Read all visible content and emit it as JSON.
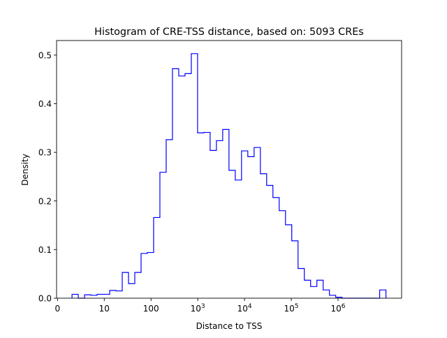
{
  "chart_data": {
    "type": "histogram",
    "title": "Histogram of CRE-TSS distance, based on: 5093 CREs",
    "xlabel": "Distance to TSS",
    "ylabel": "Density",
    "x_scale": "log10",
    "xlim": [
      -0.02,
      7.36
    ],
    "ylim": [
      0,
      0.53
    ],
    "grid": false,
    "bin_start": 0.31,
    "bin_width": 0.1343,
    "values": [
      0.008,
      0,
      0.007,
      0.006,
      0.008,
      0.008,
      0.016,
      0.015,
      0.053,
      0.03,
      0.053,
      0.092,
      0.094,
      0.166,
      0.259,
      0.326,
      0.472,
      0.457,
      0.462,
      0.503,
      0.34,
      0.341,
      0.304,
      0.324,
      0.347,
      0.263,
      0.243,
      0.303,
      0.291,
      0.31,
      0.256,
      0.232,
      0.207,
      0.18,
      0.151,
      0.118,
      0.061,
      0.037,
      0.024,
      0.037,
      0.017,
      0.006,
      0.002,
      0,
      0,
      0,
      0,
      0,
      0,
      0.017
    ],
    "line_color": "#0000ff",
    "x_ticks": [
      {
        "value": 0,
        "label": "0",
        "sup": ""
      },
      {
        "value": 1,
        "label": "10",
        "sup": ""
      },
      {
        "value": 2,
        "label": "100",
        "sup": ""
      },
      {
        "value": 3,
        "label": "10",
        "sup": "3"
      },
      {
        "value": 4,
        "label": "10",
        "sup": "4"
      },
      {
        "value": 5,
        "label": "10",
        "sup": "5"
      },
      {
        "value": 6,
        "label": "10",
        "sup": "6"
      }
    ],
    "y_ticks": [
      {
        "value": 0,
        "label": "0.0"
      },
      {
        "value": 0.1,
        "label": "0.1"
      },
      {
        "value": 0.2,
        "label": "0.2"
      },
      {
        "value": 0.3,
        "label": "0.3"
      },
      {
        "value": 0.4,
        "label": "0.4"
      },
      {
        "value": 0.5,
        "label": "0.5"
      }
    ]
  }
}
